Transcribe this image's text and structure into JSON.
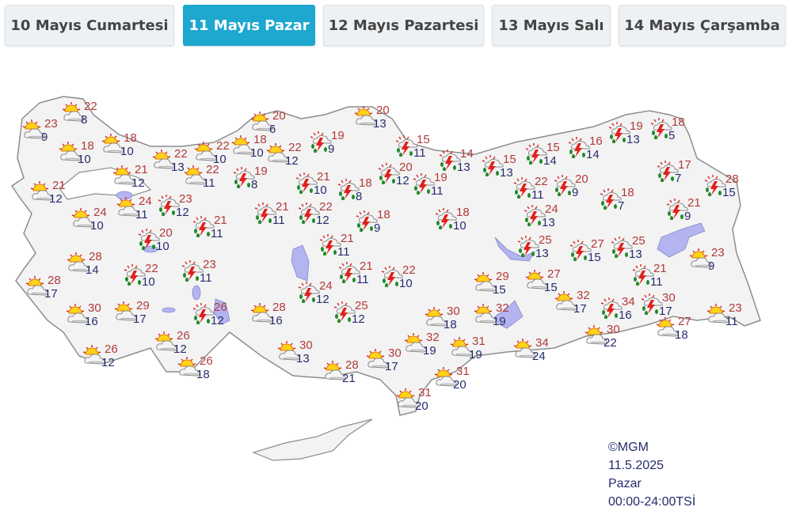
{
  "tabs": [
    {
      "label": "10 Mayıs Cumartesi",
      "active": false
    },
    {
      "label": "11 Mayıs Pazar",
      "active": true
    },
    {
      "label": "12 Mayıs Pazartesi",
      "active": false
    },
    {
      "label": "13 Mayıs Salı",
      "active": false
    },
    {
      "label": "14 Mayıs Çarşamba",
      "active": false
    }
  ],
  "colors": {
    "active_tab": "#1ea7cf",
    "land": "#f3f3f3",
    "border": "#999999",
    "water": "#b4b4f0",
    "high_temp": "#b23a3a",
    "low_temp": "#252c6c"
  },
  "icons": {
    "p": "partly-cloudy-icon",
    "s": "thunderstorm-rain-icon"
  },
  "stations": [
    {
      "w": "p",
      "hi": "22",
      "lo": "8"
    },
    {
      "w": "p",
      "hi": "23",
      "lo": "9"
    },
    {
      "w": "p",
      "hi": "18",
      "lo": "10"
    },
    {
      "w": "p",
      "hi": "18",
      "lo": "10"
    },
    {
      "w": "p",
      "hi": "22",
      "lo": "13"
    },
    {
      "w": "p",
      "hi": "21",
      "lo": "12"
    },
    {
      "w": "p",
      "hi": "21",
      "lo": "12"
    },
    {
      "w": "p",
      "hi": "24",
      "lo": "10"
    },
    {
      "w": "p",
      "hi": "24",
      "lo": "11"
    },
    {
      "w": "s",
      "hi": "23",
      "lo": "12"
    },
    {
      "w": "p",
      "hi": "22",
      "lo": "11"
    },
    {
      "w": "p",
      "hi": "22",
      "lo": "10"
    },
    {
      "w": "p",
      "hi": "18",
      "lo": "10"
    },
    {
      "w": "p",
      "hi": "22",
      "lo": "12"
    },
    {
      "w": "p",
      "hi": "20",
      "lo": "6"
    },
    {
      "w": "s",
      "hi": "19",
      "lo": "8"
    },
    {
      "w": "s",
      "hi": "19",
      "lo": "9"
    },
    {
      "w": "p",
      "hi": "20",
      "lo": "13"
    },
    {
      "w": "s",
      "hi": "21",
      "lo": "10"
    },
    {
      "w": "s",
      "hi": "18",
      "lo": "8"
    },
    {
      "w": "s",
      "hi": "21",
      "lo": "11"
    },
    {
      "w": "s",
      "hi": "22",
      "lo": "12"
    },
    {
      "w": "s",
      "hi": "18",
      "lo": "9"
    },
    {
      "w": "s",
      "hi": "21",
      "lo": "11"
    },
    {
      "w": "s",
      "hi": "20",
      "lo": "10"
    },
    {
      "w": "p",
      "hi": "28",
      "lo": "14"
    },
    {
      "w": "s",
      "hi": "22",
      "lo": "10"
    },
    {
      "w": "s",
      "hi": "23",
      "lo": "11"
    },
    {
      "w": "p",
      "hi": "28",
      "lo": "17"
    },
    {
      "w": "p",
      "hi": "30",
      "lo": "16"
    },
    {
      "w": "p",
      "hi": "29",
      "lo": "17"
    },
    {
      "w": "s",
      "hi": "26",
      "lo": "12"
    },
    {
      "w": "p",
      "hi": "26",
      "lo": "12"
    },
    {
      "w": "p",
      "hi": "26",
      "lo": "12"
    },
    {
      "w": "p",
      "hi": "26",
      "lo": "18"
    },
    {
      "w": "p",
      "hi": "28",
      "lo": "16"
    },
    {
      "w": "p",
      "hi": "30",
      "lo": "13"
    },
    {
      "w": "p",
      "hi": "28",
      "lo": "21"
    },
    {
      "w": "s",
      "hi": "21",
      "lo": "11"
    },
    {
      "w": "s",
      "hi": "21",
      "lo": "11"
    },
    {
      "w": "s",
      "hi": "24",
      "lo": "12"
    },
    {
      "w": "s",
      "hi": "25",
      "lo": "12"
    },
    {
      "w": "s",
      "hi": "22",
      "lo": "10"
    },
    {
      "w": "s",
      "hi": "15",
      "lo": "11"
    },
    {
      "w": "s",
      "hi": "20",
      "lo": "12"
    },
    {
      "w": "s",
      "hi": "14",
      "lo": "13"
    },
    {
      "w": "s",
      "hi": "19",
      "lo": "11"
    },
    {
      "w": "s",
      "hi": "15",
      "lo": "13"
    },
    {
      "w": "s",
      "hi": "15",
      "lo": "14"
    },
    {
      "w": "s",
      "hi": "16",
      "lo": "14"
    },
    {
      "w": "s",
      "hi": "19",
      "lo": "13"
    },
    {
      "w": "s",
      "hi": "18",
      "lo": "5"
    },
    {
      "w": "s",
      "hi": "22",
      "lo": "11"
    },
    {
      "w": "s",
      "hi": "20",
      "lo": "9"
    },
    {
      "w": "s",
      "hi": "18",
      "lo": "10"
    },
    {
      "w": "s",
      "hi": "24",
      "lo": "13"
    },
    {
      "w": "s",
      "hi": "18",
      "lo": "7"
    },
    {
      "w": "s",
      "hi": "17",
      "lo": "7"
    },
    {
      "w": "s",
      "hi": "28",
      "lo": "15"
    },
    {
      "w": "s",
      "hi": "21",
      "lo": "9"
    },
    {
      "w": "s",
      "hi": "25",
      "lo": "13"
    },
    {
      "w": "s",
      "hi": "27",
      "lo": "15"
    },
    {
      "w": "s",
      "hi": "25",
      "lo": "13"
    },
    {
      "w": "p",
      "hi": "23",
      "lo": "9"
    },
    {
      "w": "s",
      "hi": "21",
      "lo": "11"
    },
    {
      "w": "p",
      "hi": "29",
      "lo": "15"
    },
    {
      "w": "p",
      "hi": "27",
      "lo": "15"
    },
    {
      "w": "p",
      "hi": "32",
      "lo": "17"
    },
    {
      "w": "s",
      "hi": "34",
      "lo": "16"
    },
    {
      "w": "s",
      "hi": "30",
      "lo": "17"
    },
    {
      "w": "p",
      "hi": "30",
      "lo": "18"
    },
    {
      "w": "p",
      "hi": "32",
      "lo": "19"
    },
    {
      "w": "p",
      "hi": "32",
      "lo": "19"
    },
    {
      "w": "p",
      "hi": "31",
      "lo": "19"
    },
    {
      "w": "p",
      "hi": "34",
      "lo": "24"
    },
    {
      "w": "p",
      "hi": "30",
      "lo": "22"
    },
    {
      "w": "p",
      "hi": "27",
      "lo": "18"
    },
    {
      "w": "p",
      "hi": "23",
      "lo": "11"
    },
    {
      "w": "p",
      "hi": "30",
      "lo": "17"
    },
    {
      "w": "p",
      "hi": "31",
      "lo": "20"
    },
    {
      "w": "p",
      "hi": "31",
      "lo": "20"
    }
  ],
  "credit": {
    "source": "©MGM",
    "date": "11.5.2025",
    "day": "Pazar",
    "period": "00:00-24:00TSİ"
  }
}
